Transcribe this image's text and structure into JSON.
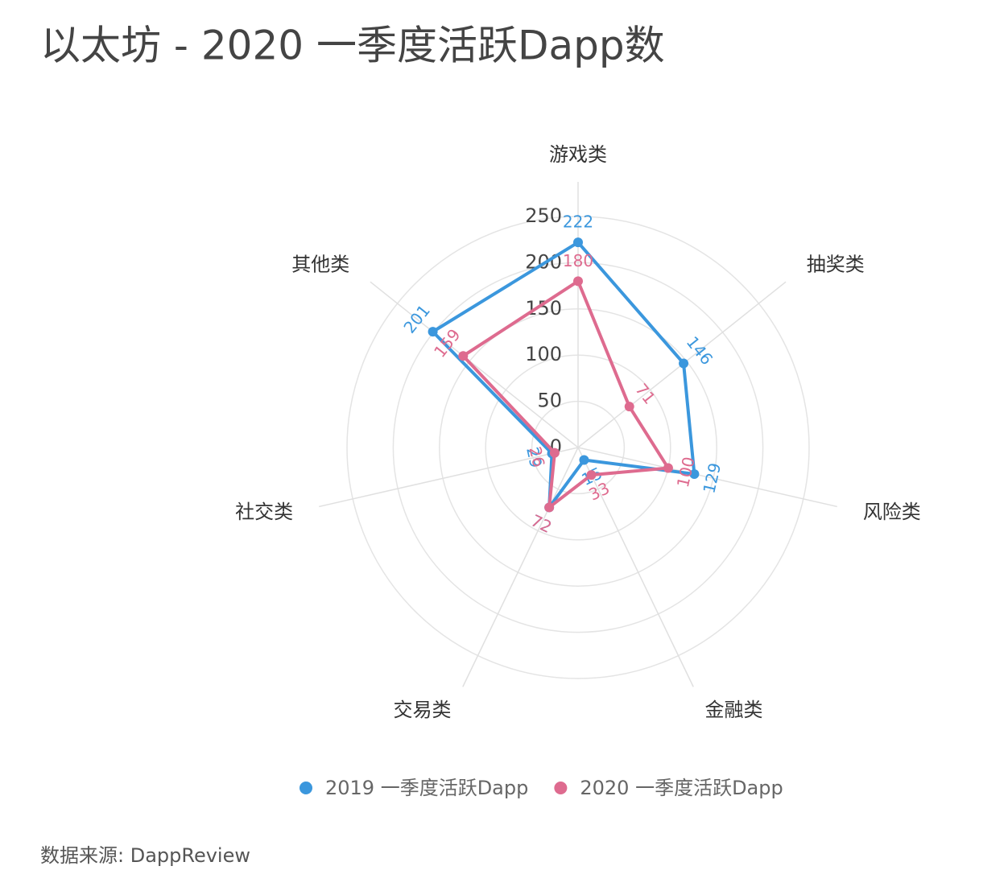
{
  "chart_data": {
    "type": "radar",
    "title": "以太坊 - 2020 一季度活跃Dapp数",
    "categories": [
      "游戏类",
      "抽奖类",
      "风险类",
      "金融类",
      "交易类",
      "社交类",
      "其他类"
    ],
    "series": [
      {
        "name": "2019 一季度活跃Dapp",
        "color": "#3b97dd",
        "values": [
          222,
          146,
          129,
          15,
          72,
          29,
          201
        ]
      },
      {
        "name": "2020 一季度活跃Dapp",
        "color": "#de6b8f",
        "values": [
          180,
          71,
          100,
          33,
          72,
          26,
          159
        ]
      }
    ],
    "ylim": [
      0,
      250
    ],
    "yticks": [
      0,
      50,
      100,
      150,
      200,
      250
    ],
    "grid": true,
    "source": "数据来源: DappReview"
  }
}
